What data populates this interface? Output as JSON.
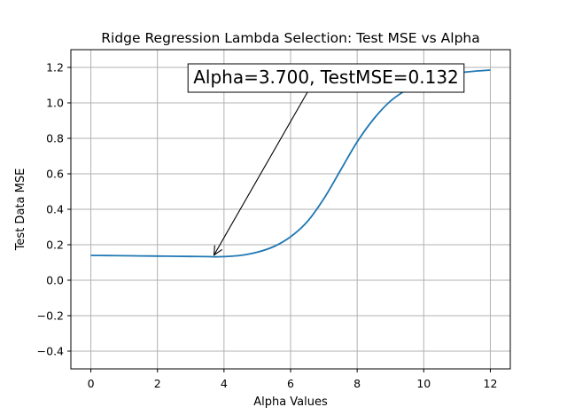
{
  "chart_data": {
    "type": "line",
    "title": "Ridge Regression Lambda Selection: Test MSE vs Alpha",
    "xlabel": "Alpha Values",
    "ylabel": "Test Data MSE",
    "xlim": [
      -0.6,
      12.6
    ],
    "ylim": [
      -0.5,
      1.3
    ],
    "xticks": [
      0,
      2,
      4,
      6,
      8,
      10,
      12
    ],
    "yticks": [
      -0.4,
      -0.2,
      0.0,
      0.2,
      0.4,
      0.6,
      0.8,
      1.0,
      1.2
    ],
    "xtick_labels": [
      "0",
      "2",
      "4",
      "6",
      "8",
      "10",
      "12"
    ],
    "ytick_labels": [
      "−0.4",
      "−0.2",
      "0.0",
      "0.2",
      "0.4",
      "0.6",
      "0.8",
      "1.0",
      "1.2"
    ],
    "grid": true,
    "series": [
      {
        "color": "#1f77b4",
        "x": [
          0,
          0.5,
          1,
          1.5,
          2,
          2.5,
          3,
          3.5,
          3.7,
          4,
          4.5,
          5,
          5.5,
          6,
          6.5,
          7,
          7.5,
          8,
          8.5,
          9,
          9.5,
          10,
          10.5,
          11,
          11.5,
          12
        ],
        "y": [
          0.14,
          0.139,
          0.138,
          0.137,
          0.136,
          0.135,
          0.134,
          0.133,
          0.132,
          0.133,
          0.14,
          0.158,
          0.19,
          0.245,
          0.33,
          0.46,
          0.62,
          0.78,
          0.91,
          1.01,
          1.075,
          1.12,
          1.15,
          1.168,
          1.178,
          1.185
        ]
      }
    ],
    "annotation": {
      "text": "Alpha=3.700, TestMSE=0.132",
      "point": [
        3.7,
        0.132
      ]
    }
  }
}
